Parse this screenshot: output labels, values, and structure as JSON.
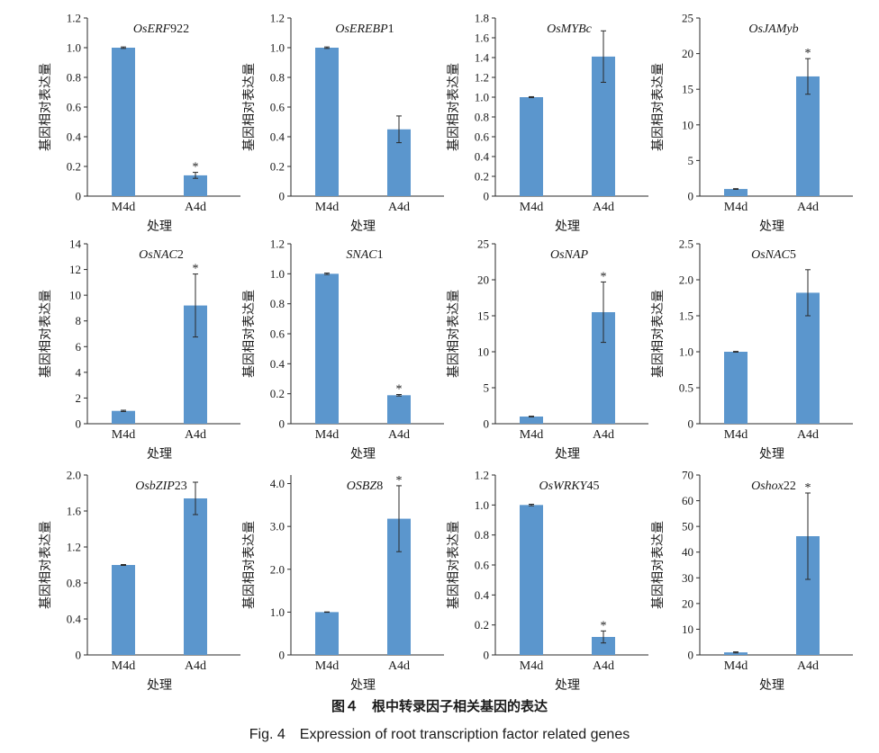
{
  "figure": {
    "caption_cn": "图４　根中转录因子相关基因的表达",
    "caption_en": "Fig. 4　Expression of root transcription factor related genes"
  },
  "chart_data": [
    {
      "type": "bar",
      "title_italic": "OsERF",
      "title_suffix": "922",
      "categories": [
        "M4d",
        "A4d"
      ],
      "values": [
        1.0,
        0.14
      ],
      "errors": [
        0.005,
        0.02
      ],
      "significance": [
        "",
        "*"
      ],
      "ylim": [
        0,
        1.2
      ],
      "yticks": [
        "0",
        "0.2",
        "0.4",
        "0.6",
        "0.8",
        "1.0",
        "1.2"
      ],
      "ylabel": "基因相对表达量",
      "xlabel": "处理"
    },
    {
      "type": "bar",
      "title_italic": "OsEREBP",
      "title_suffix": "1",
      "categories": [
        "M4d",
        "A4d"
      ],
      "values": [
        1.0,
        0.45
      ],
      "errors": [
        0.005,
        0.09
      ],
      "significance": [
        "",
        ""
      ],
      "ylim": [
        0,
        1.2
      ],
      "yticks": [
        "0",
        "0.2",
        "0.4",
        "0.6",
        "0.8",
        "1.0",
        "1.2"
      ],
      "ylabel": "基因相对表达量",
      "xlabel": "处理"
    },
    {
      "type": "bar",
      "title_italic": "OsMYBc",
      "title_suffix": "",
      "categories": [
        "M4d",
        "A4d"
      ],
      "values": [
        1.0,
        1.41
      ],
      "errors": [
        0.005,
        0.26
      ],
      "significance": [
        "",
        ""
      ],
      "ylim": [
        0,
        1.8
      ],
      "yticks": [
        "0",
        "0.2",
        "0.4",
        "0.6",
        "0.8",
        "1.0",
        "1.2",
        "1.4",
        "1.6",
        "1.8"
      ],
      "ylabel": "基因相对表达量",
      "xlabel": "处理"
    },
    {
      "type": "bar",
      "title_italic": "OsJAMyb",
      "title_suffix": "",
      "categories": [
        "M4d",
        "A4d"
      ],
      "values": [
        1.0,
        16.8
      ],
      "errors": [
        0.05,
        2.5
      ],
      "significance": [
        "",
        "*"
      ],
      "ylim": [
        0,
        25
      ],
      "yticks": [
        "0",
        "5",
        "10",
        "15",
        "20",
        "25"
      ],
      "ylabel": "基因相对表达量",
      "xlabel": "处理"
    },
    {
      "type": "bar",
      "title_italic": "OsNAC",
      "title_suffix": "2",
      "categories": [
        "M4d",
        "A4d"
      ],
      "values": [
        1.0,
        9.2
      ],
      "errors": [
        0.05,
        2.45
      ],
      "significance": [
        "",
        "*"
      ],
      "ylim": [
        0,
        14
      ],
      "yticks": [
        "0",
        "2",
        "4",
        "6",
        "8",
        "10",
        "12",
        "14"
      ],
      "ylabel": "基因相对表达量",
      "xlabel": "处理"
    },
    {
      "type": "bar",
      "title_italic": "SNAC",
      "title_suffix": "1",
      "categories": [
        "M4d",
        "A4d"
      ],
      "values": [
        1.0,
        0.19
      ],
      "errors": [
        0.005,
        0.005
      ],
      "significance": [
        "",
        "*"
      ],
      "ylim": [
        0,
        1.2
      ],
      "yticks": [
        "0",
        "0.2",
        "0.4",
        "0.6",
        "0.8",
        "1.0",
        "1.2"
      ],
      "ylabel": "基因相对表达量",
      "xlabel": "处理"
    },
    {
      "type": "bar",
      "title_italic": "OsNAP",
      "title_suffix": "",
      "categories": [
        "M4d",
        "A4d"
      ],
      "values": [
        1.0,
        15.5
      ],
      "errors": [
        0.05,
        4.2
      ],
      "significance": [
        "",
        "*"
      ],
      "ylim": [
        0,
        25
      ],
      "yticks": [
        "0",
        "5",
        "10",
        "15",
        "20",
        "25"
      ],
      "ylabel": "基因相对表达量",
      "xlabel": "处理"
    },
    {
      "type": "bar",
      "title_italic": "OsNAC",
      "title_suffix": "5",
      "categories": [
        "M4d",
        "A4d"
      ],
      "values": [
        1.0,
        1.82
      ],
      "errors": [
        0.005,
        0.32
      ],
      "significance": [
        "",
        ""
      ],
      "ylim": [
        0,
        2.5
      ],
      "yticks": [
        "0",
        "0.5",
        "1.0",
        "1.5",
        "2.0",
        "2.5"
      ],
      "ylabel": "基因相对表达量",
      "xlabel": "处理"
    },
    {
      "type": "bar",
      "title_italic": "OsbZIP",
      "title_suffix": "23",
      "categories": [
        "M4d",
        "A4d"
      ],
      "values": [
        1.0,
        1.74
      ],
      "errors": [
        0.005,
        0.18
      ],
      "significance": [
        "",
        ""
      ],
      "ylim": [
        0,
        2.0
      ],
      "yticks": [
        "0",
        "0.4",
        "0.8",
        "1.2",
        "1.6",
        "2.0"
      ],
      "ylabel": "基因相对表达量",
      "xlabel": "处理"
    },
    {
      "type": "bar",
      "title_italic": "OSBZ",
      "title_suffix": "8",
      "categories": [
        "M4d",
        "A4d"
      ],
      "values": [
        1.0,
        3.18
      ],
      "errors": [
        0.005,
        0.77
      ],
      "significance": [
        "",
        "*"
      ],
      "ylim": [
        0,
        4.2
      ],
      "yticks": [
        "0",
        "1.0",
        "2.0",
        "3.0",
        "4.0"
      ],
      "ylabel": "基因相对表达量",
      "xlabel": "处理"
    },
    {
      "type": "bar",
      "title_italic": "OsWRKY",
      "title_suffix": "45",
      "categories": [
        "M4d",
        "A4d"
      ],
      "values": [
        1.0,
        0.12
      ],
      "errors": [
        0.005,
        0.04
      ],
      "significance": [
        "",
        "*"
      ],
      "ylim": [
        0,
        1.2
      ],
      "yticks": [
        "0",
        "0.2",
        "0.4",
        "0.6",
        "0.8",
        "1.0",
        "1.2"
      ],
      "ylabel": "基因相对表达量",
      "xlabel": "处理"
    },
    {
      "type": "bar",
      "title_italic": "Oshox",
      "title_suffix": "22",
      "categories": [
        "M4d",
        "A4d"
      ],
      "values": [
        1.0,
        46.2
      ],
      "errors": [
        0.2,
        16.8
      ],
      "significance": [
        "",
        "*"
      ],
      "ylim": [
        0,
        70
      ],
      "yticks": [
        "0",
        "10",
        "20",
        "30",
        "40",
        "50",
        "60",
        "70"
      ],
      "ylabel": "基因相对表达量",
      "xlabel": "处理"
    }
  ],
  "colors": {
    "bar": "#5b96cd",
    "axis": "#2a2a2a",
    "text": "#1a1a1a"
  }
}
